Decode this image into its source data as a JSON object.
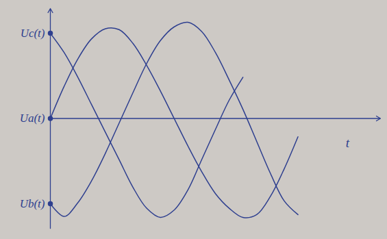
{
  "chart_data": {
    "type": "line",
    "x_label": "t",
    "x": [
      0,
      2,
      4,
      6,
      8,
      10,
      12,
      14,
      16,
      18,
      20,
      22,
      24,
      26,
      28,
      30,
      32,
      34,
      36
    ],
    "series": [
      {
        "name": "Uc(t)",
        "color": "#2e3f8f",
        "values": [
          0.93,
          0.72,
          0.45,
          0.15,
          -0.15,
          -0.45,
          -0.75,
          -0.98,
          -1.08,
          -1.0,
          -0.78,
          -0.45,
          -0.12,
          0.2,
          0.45,
          null,
          null,
          null,
          null
        ]
      },
      {
        "name": "Ua(t)",
        "color": "#2e3f8f",
        "values": [
          0,
          0.35,
          0.65,
          0.87,
          0.98,
          0.97,
          0.82,
          0.58,
          0.3,
          0.0,
          -0.3,
          -0.58,
          -0.82,
          -0.98,
          -1.08,
          -1.05,
          -0.85,
          -0.55,
          -0.2
        ]
      },
      {
        "name": "Ub(t)",
        "color": "#2e3f8f",
        "values": [
          -0.93,
          -1.07,
          -0.92,
          -0.68,
          -0.38,
          -0.05,
          0.28,
          0.6,
          0.85,
          1.0,
          1.05,
          0.95,
          0.72,
          0.42,
          0.1,
          -0.25,
          -0.6,
          -0.9,
          -1.05
        ]
      }
    ],
    "xlim": [
      0,
      48
    ],
    "ylim": [
      -1.2,
      1.2
    ],
    "xticks": [],
    "yticks": [],
    "tick_labels": false,
    "grid": false
  }
}
